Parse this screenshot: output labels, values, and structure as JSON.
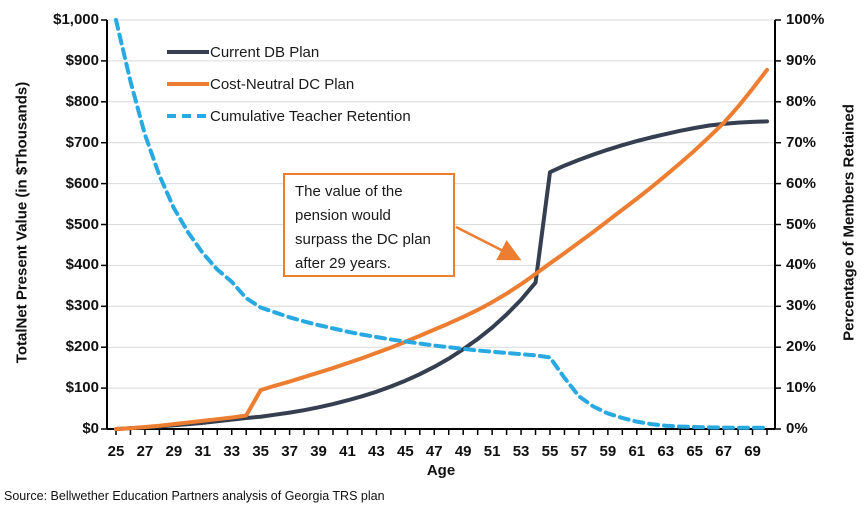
{
  "colors": {
    "db_navy": "#363F4F",
    "dc_orange": "#ED7D31",
    "retention_blue": "#29A9E1",
    "gridline": "#D9D9D9",
    "axis": "#000000",
    "text": "#1A1A1A"
  },
  "source": "Source: Bellwether Education Partners analysis of Georgia TRS plan",
  "chart_data": {
    "type": "line",
    "grid": true,
    "legend_position": "top-left-inside",
    "x_axis": {
      "title": "Age",
      "range": [
        25,
        70
      ],
      "tick_labels": [
        "25",
        "27",
        "29",
        "31",
        "33",
        "35",
        "37",
        "39",
        "41",
        "43",
        "45",
        "47",
        "49",
        "51",
        "53",
        "55",
        "57",
        "59",
        "61",
        "63",
        "65",
        "67",
        "69"
      ]
    },
    "left_axis": {
      "title": "TotalNet Present Value (in $Thousands)",
      "range": [
        0,
        1000
      ],
      "tick_step": 100,
      "tick_labels": [
        "$0",
        "$100",
        "$200",
        "$300",
        "$400",
        "$500",
        "$600",
        "$700",
        "$800",
        "$900",
        "$1,000"
      ]
    },
    "right_axis": {
      "title": "Percentage of Members Retained",
      "range": [
        0,
        100
      ],
      "tick_step": 10,
      "tick_labels": [
        "0%",
        "10%",
        "20%",
        "30%",
        "40%",
        "50%",
        "60%",
        "70%",
        "80%",
        "90%",
        "100%"
      ]
    },
    "x": [
      25,
      26,
      27,
      28,
      29,
      30,
      31,
      32,
      33,
      34,
      35,
      36,
      37,
      38,
      39,
      40,
      41,
      42,
      43,
      44,
      45,
      46,
      47,
      48,
      49,
      50,
      51,
      52,
      53,
      54,
      55,
      56,
      57,
      58,
      59,
      60,
      61,
      62,
      63,
      64,
      65,
      66,
      67,
      68,
      69,
      70
    ],
    "series": [
      {
        "name": "Current DB Plan",
        "axis": "left",
        "style": "solid",
        "color": "#363F4F",
        "values": [
          0,
          2,
          4,
          6,
          9,
          12,
          15,
          19,
          23,
          27,
          30,
          35,
          40,
          46,
          53,
          61,
          70,
          80,
          91,
          104,
          118,
          134,
          152,
          172,
          195,
          220,
          248,
          280,
          316,
          358,
          628,
          644,
          658,
          671,
          683,
          694,
          704,
          713,
          721,
          729,
          736,
          742,
          746,
          749,
          751,
          752
        ]
      },
      {
        "name": "Cost-Neutral DC Plan",
        "axis": "left",
        "style": "solid",
        "color": "#ED7D31",
        "values": [
          0,
          2,
          5,
          8,
          12,
          16,
          20,
          24,
          28,
          33,
          95,
          106,
          116,
          127,
          138,
          149,
          161,
          173,
          186,
          199,
          213,
          228,
          243,
          258,
          274,
          291,
          310,
          331,
          354,
          379,
          405,
          430,
          456,
          482,
          509,
          536,
          563,
          591,
          620,
          650,
          681,
          714,
          748,
          788,
          832,
          878
        ]
      },
      {
        "name": "Cumulative Teacher Retention",
        "axis": "right",
        "style": "dashed",
        "color": "#29A9E1",
        "values": [
          100,
          85,
          72,
          62,
          54,
          48,
          43,
          39,
          36,
          32,
          29.7,
          28.5,
          27.3,
          26.3,
          25.4,
          24.6,
          23.8,
          23.1,
          22.5,
          21.9,
          21.4,
          20.9,
          20.4,
          20,
          19.6,
          19.2,
          18.9,
          18.6,
          18.3,
          18,
          17.5,
          12.5,
          8,
          5.5,
          3.8,
          2.7,
          1.8,
          1.2,
          0.8,
          0.6,
          0.5,
          0.4,
          0.35,
          0.3,
          0.3,
          0.3
        ]
      }
    ],
    "annotation": {
      "text": "The value of the pension would surpass the DC plan after 29 years.",
      "arrow_target_age": 54,
      "arrow_target_value_thousands": 400
    }
  }
}
